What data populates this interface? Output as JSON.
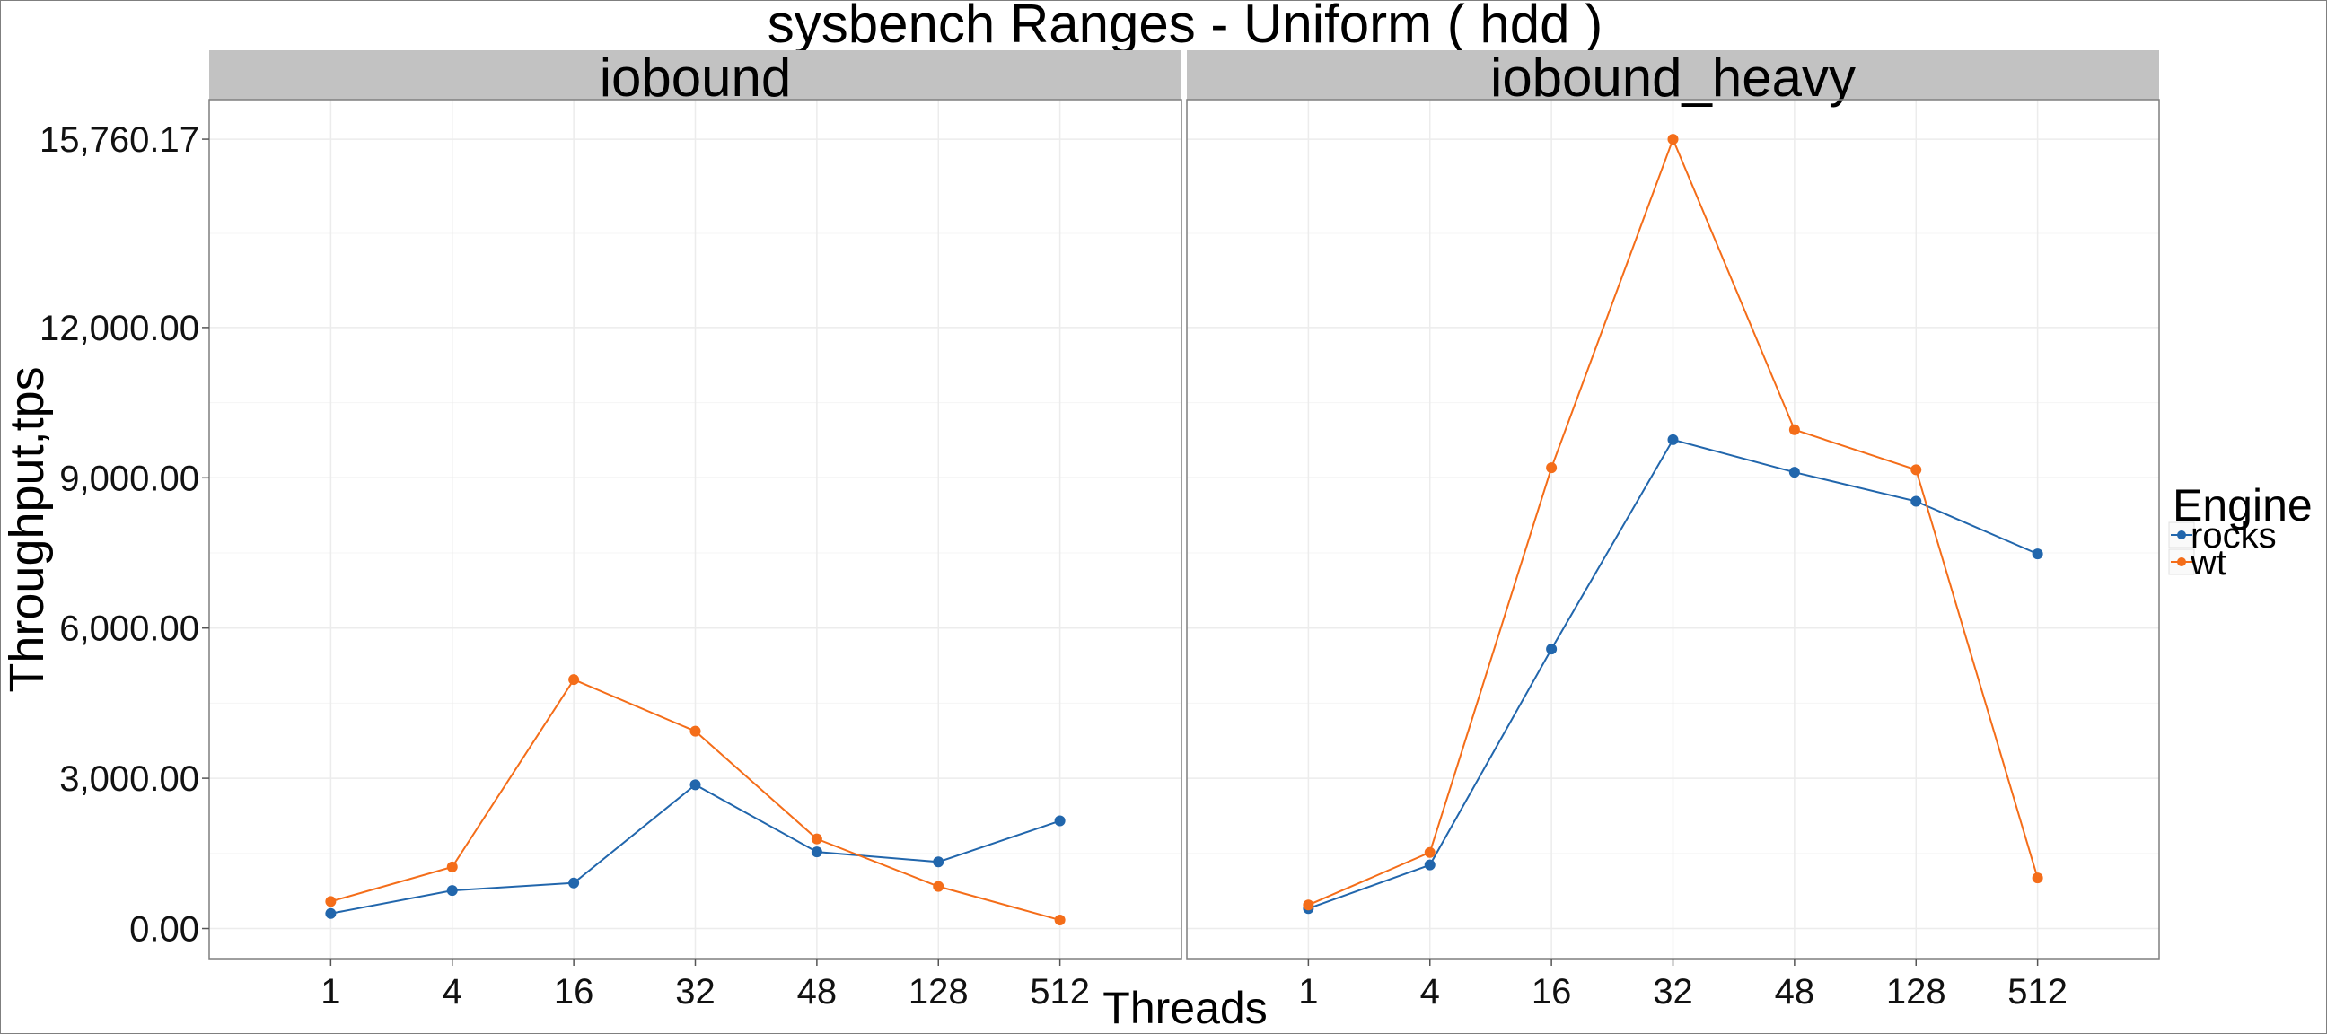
{
  "chart_data": {
    "type": "line",
    "title": "sysbench Ranges - Uniform ( hdd )",
    "xlabel": "Threads",
    "ylabel": "Throughput,tps",
    "categories": [
      "1",
      "4",
      "16",
      "32",
      "48",
      "128",
      "512"
    ],
    "y_ticks": [
      0,
      3000,
      6000,
      9000,
      12000,
      15760.17
    ],
    "y_tick_labels": [
      "0.00",
      "3,000.00",
      "6,000.00",
      "9,000.00",
      "12,000.00",
      "15,760.17"
    ],
    "ylim": [
      -600,
      16550
    ],
    "grid": true,
    "legend": {
      "title": "Engine",
      "position": "right"
    },
    "colors": {
      "rocks": "#2166ac",
      "wt": "#f46d19",
      "strip": "#c2c2c2",
      "grid": "#ececec"
    },
    "panels": [
      {
        "label": "iobound",
        "series": [
          {
            "name": "rocks",
            "values": [
              300,
              760,
              910,
              2870,
              1530,
              1330,
              2150
            ]
          },
          {
            "name": "wt",
            "values": [
              540,
              1230,
              4970,
              3940,
              1790,
              840,
              170
            ]
          }
        ]
      },
      {
        "label": "iobound_heavy",
        "series": [
          {
            "name": "rocks",
            "values": [
              400,
              1270,
              5580,
              9760,
              9110,
              8530,
              7480
            ]
          },
          {
            "name": "wt",
            "values": [
              470,
              1520,
              9200,
              15760.17,
              9960,
              9160,
              1010
            ]
          }
        ]
      }
    ]
  }
}
